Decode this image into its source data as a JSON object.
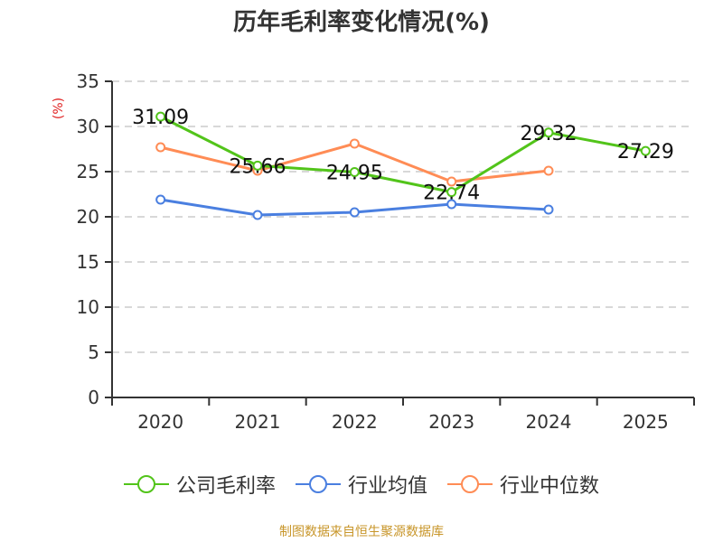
{
  "title": "历年毛利率变化情况(%)",
  "y_unit": "(%)",
  "footer": "制图数据来自恒生聚源数据库",
  "legend": [
    {
      "label": "公司毛利率",
      "color": "#52c41a"
    },
    {
      "label": "行业均值",
      "color": "#4a7fe0"
    },
    {
      "label": "行业中位数",
      "color": "#ff8c55"
    }
  ],
  "chart_data": {
    "type": "line",
    "title": "历年毛利率变化情况(%)",
    "xlabel": "",
    "ylabel": "(%)",
    "categories": [
      "2020",
      "2021",
      "2022",
      "2023",
      "2024",
      "2025"
    ],
    "ylim": [
      0,
      35
    ],
    "yticks": [
      0,
      5,
      10,
      15,
      20,
      25,
      30,
      35
    ],
    "grid": true,
    "legend_position": "bottom",
    "series": [
      {
        "name": "公司毛利率",
        "color": "#52c41a",
        "values": [
          31.09,
          25.66,
          24.95,
          22.74,
          29.32,
          27.29
        ],
        "labels": [
          "31.09",
          "25.66",
          "24.95",
          "22.74",
          "29.32",
          "27.29"
        ]
      },
      {
        "name": "行业均值",
        "color": "#4a7fe0",
        "values": [
          21.9,
          20.2,
          20.5,
          21.4,
          20.8,
          null
        ]
      },
      {
        "name": "行业中位数",
        "color": "#ff8c55",
        "values": [
          27.7,
          25.1,
          28.1,
          23.9,
          25.1,
          null
        ]
      }
    ]
  }
}
